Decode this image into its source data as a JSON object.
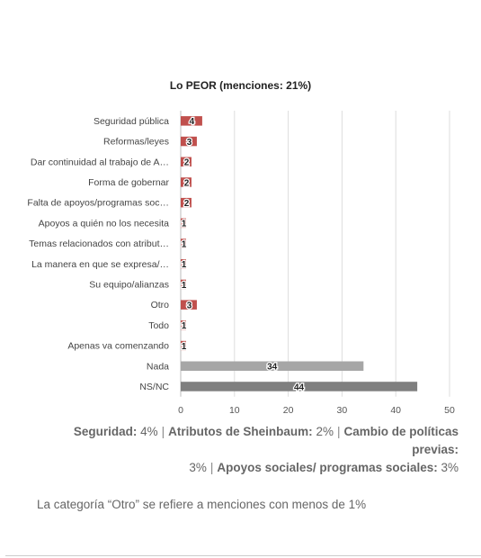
{
  "chart_data": {
    "type": "bar",
    "orientation": "horizontal",
    "title": "Lo PEOR (menciones: 21%)",
    "categories": [
      "Seguridad pública",
      "Reformas/leyes",
      "Dar continuidad al trabajo de A…",
      "Forma de gobernar",
      "Falta de apoyos/programas soc…",
      "Apoyos a quién no los necesita",
      "Temas relacionados con atribut…",
      "La manera en que se expresa/…",
      "Su equipo/alianzas",
      "Otro",
      "Todo",
      "Apenas va comenzando",
      "Nada",
      "NS/NC"
    ],
    "values": [
      4,
      3,
      2,
      2,
      2,
      1,
      1,
      1,
      1,
      3,
      1,
      1,
      34,
      44
    ],
    "colors": [
      "#c0504d",
      "#c0504d",
      "#c0504d",
      "#c0504d",
      "#c0504d",
      "#c0504d",
      "#c0504d",
      "#c0504d",
      "#c0504d",
      "#c0504d",
      "#c0504d",
      "#c0504d",
      "#a6a6a6",
      "#7f7f7f"
    ],
    "xlim": [
      0,
      50
    ],
    "xticks": [
      0,
      10,
      20,
      30,
      40,
      50
    ],
    "grid": true,
    "legend": "none"
  },
  "summary": [
    {
      "label": "Seguridad:",
      "value": "4%"
    },
    {
      "label": "Atributos de Sheinbaum:",
      "value": "2%"
    },
    {
      "label": "Cambio de políticas previas:",
      "value": "3%"
    },
    {
      "label": "Apoyos sociales/ programas sociales:",
      "value": "3%"
    }
  ],
  "separator": "|",
  "note": "La categoría “Otro” se refiere a menciones con menos de 1%"
}
